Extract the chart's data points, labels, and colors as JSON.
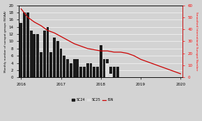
{
  "sc24_values": [
    15,
    18,
    18,
    13,
    12,
    12,
    7,
    13,
    14,
    7,
    11,
    10,
    8,
    6,
    5,
    4,
    5,
    5,
    3,
    3,
    4,
    4,
    3,
    3,
    9,
    5,
    5,
    3,
    3,
    3
  ],
  "sc25_values": [
    0,
    0,
    0,
    0,
    0,
    0,
    0,
    0,
    0,
    0,
    0,
    0,
    0,
    0,
    0,
    0,
    0,
    0,
    0,
    0,
    0,
    0,
    0,
    0,
    0,
    0,
    4,
    1,
    0,
    0
  ],
  "isrn_x": [
    0,
    2,
    4,
    6,
    8,
    10,
    12,
    14,
    16,
    18,
    20,
    22,
    24,
    26,
    28,
    30,
    32,
    34,
    36,
    38,
    40,
    42,
    44,
    46,
    48
  ],
  "isrn_y": [
    57,
    50,
    46,
    43,
    39,
    37,
    34,
    31,
    28,
    26,
    24,
    23,
    22,
    22,
    21,
    21,
    20,
    18,
    15,
    13,
    11,
    9,
    7,
    5,
    3
  ],
  "sc24_color": "#1a1a1a",
  "sc25_color": "#e0e0e0",
  "isrn_color": "#cc0000",
  "ylabel_left": "Monthly number of sunspot groups (NOAA)",
  "ylabel_right": "Smoothed International Sunspot Number",
  "ylim_left": [
    0,
    20
  ],
  "ylim_right": [
    0,
    60
  ],
  "yticks_left": [
    0,
    2,
    4,
    6,
    8,
    10,
    12,
    14,
    16,
    18,
    20
  ],
  "yticks_right": [
    0,
    10,
    20,
    30,
    40,
    50,
    60
  ],
  "x_tick_labels": [
    "2016",
    "2017",
    "2018",
    "2019",
    "2020"
  ],
  "x_tick_positions": [
    0,
    12,
    24,
    36,
    48
  ],
  "background_color": "#d3d3d3",
  "total_x_range": 48,
  "n_bars": 30
}
